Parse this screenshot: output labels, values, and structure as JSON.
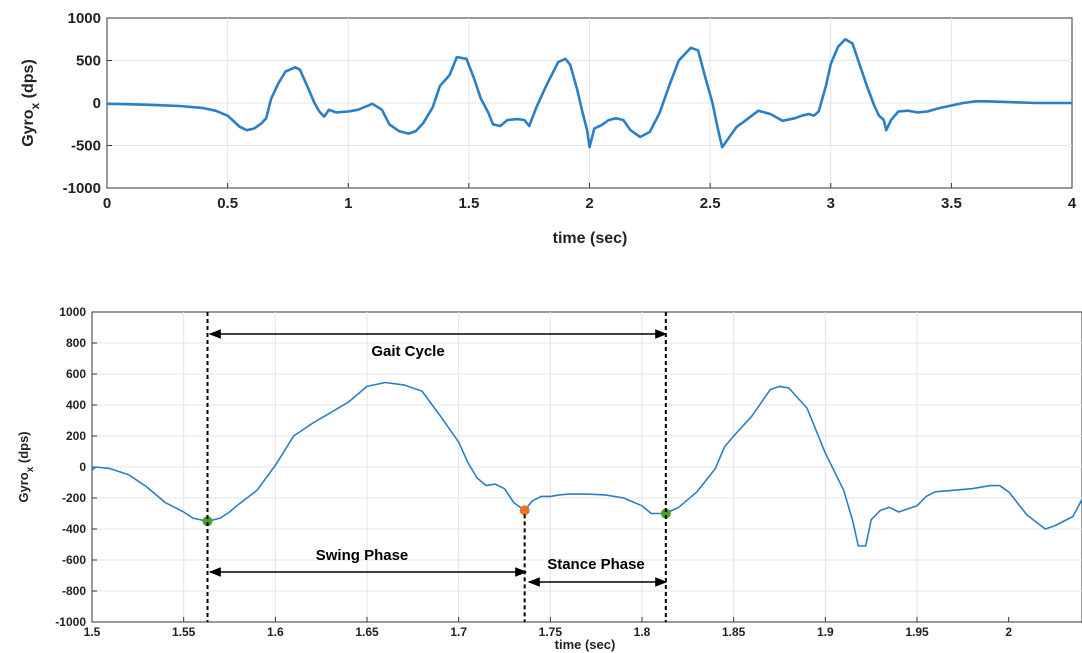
{
  "chart_data": [
    {
      "type": "line",
      "xlabel": "time (sec)",
      "ylabel": "Gyro",
      "ylabel_sub": "x",
      "ylabel_unit": " (dps)",
      "xlim": [
        0,
        4
      ],
      "ylim": [
        -1000,
        1000
      ],
      "xticks": [
        0,
        0.5,
        1,
        1.5,
        2,
        2.5,
        3,
        3.5,
        4
      ],
      "xtick_labels": [
        "0",
        "0.5",
        "1",
        "1.5",
        "2",
        "2.5",
        "3",
        "3.5",
        "4"
      ],
      "yticks": [
        -1000,
        -500,
        0,
        500,
        1000
      ],
      "ytick_labels": [
        "-1000",
        "-500",
        "0",
        "500",
        "1000"
      ],
      "grid": true,
      "color": "#2a7fc7",
      "series": [
        {
          "points": [
            [
              0,
              -10
            ],
            [
              0.1,
              -15
            ],
            [
              0.2,
              -25
            ],
            [
              0.3,
              -35
            ],
            [
              0.4,
              -60
            ],
            [
              0.45,
              -90
            ],
            [
              0.5,
              -150
            ],
            [
              0.52,
              -200
            ],
            [
              0.55,
              -280
            ],
            [
              0.58,
              -320
            ],
            [
              0.61,
              -300
            ],
            [
              0.64,
              -240
            ],
            [
              0.66,
              -180
            ],
            [
              0.68,
              50
            ],
            [
              0.71,
              230
            ],
            [
              0.74,
              370
            ],
            [
              0.78,
              420
            ],
            [
              0.8,
              390
            ],
            [
              0.83,
              200
            ],
            [
              0.86,
              0
            ],
            [
              0.88,
              -100
            ],
            [
              0.9,
              -160
            ],
            [
              0.92,
              -80
            ],
            [
              0.95,
              -110
            ],
            [
              1,
              -100
            ],
            [
              1.04,
              -80
            ],
            [
              1.1,
              -10
            ],
            [
              1.14,
              -80
            ],
            [
              1.17,
              -250
            ],
            [
              1.21,
              -330
            ],
            [
              1.25,
              -360
            ],
            [
              1.28,
              -330
            ],
            [
              1.31,
              -240
            ],
            [
              1.35,
              -50
            ],
            [
              1.38,
              200
            ],
            [
              1.42,
              330
            ],
            [
              1.45,
              540
            ],
            [
              1.49,
              520
            ],
            [
              1.52,
              300
            ],
            [
              1.55,
              50
            ],
            [
              1.58,
              -110
            ],
            [
              1.6,
              -250
            ],
            [
              1.63,
              -270
            ],
            [
              1.66,
              -200
            ],
            [
              1.7,
              -190
            ],
            [
              1.73,
              -200
            ],
            [
              1.75,
              -270
            ],
            [
              1.78,
              -50
            ],
            [
              1.82,
              200
            ],
            [
              1.87,
              480
            ],
            [
              1.9,
              520
            ],
            [
              1.92,
              450
            ],
            [
              1.95,
              150
            ],
            [
              1.97,
              -100
            ],
            [
              1.99,
              -320
            ],
            [
              2.0,
              -520
            ],
            [
              2.02,
              -300
            ],
            [
              2.05,
              -260
            ],
            [
              2.08,
              -200
            ],
            [
              2.11,
              -180
            ],
            [
              2.14,
              -200
            ],
            [
              2.17,
              -320
            ],
            [
              2.21,
              -400
            ],
            [
              2.25,
              -340
            ],
            [
              2.29,
              -120
            ],
            [
              2.33,
              200
            ],
            [
              2.37,
              500
            ],
            [
              2.42,
              650
            ],
            [
              2.45,
              620
            ],
            [
              2.48,
              300
            ],
            [
              2.51,
              0
            ],
            [
              2.53,
              -280
            ],
            [
              2.55,
              -520
            ],
            [
              2.58,
              -400
            ],
            [
              2.61,
              -280
            ],
            [
              2.64,
              -220
            ],
            [
              2.7,
              -90
            ],
            [
              2.75,
              -130
            ],
            [
              2.8,
              -210
            ],
            [
              2.85,
              -180
            ],
            [
              2.88,
              -150
            ],
            [
              2.91,
              -130
            ],
            [
              2.93,
              -150
            ],
            [
              2.95,
              -100
            ],
            [
              2.98,
              200
            ],
            [
              3.0,
              460
            ],
            [
              3.03,
              660
            ],
            [
              3.06,
              750
            ],
            [
              3.09,
              700
            ],
            [
              3.12,
              450
            ],
            [
              3.15,
              200
            ],
            [
              3.18,
              -30
            ],
            [
              3.2,
              -150
            ],
            [
              3.22,
              -200
            ],
            [
              3.23,
              -320
            ],
            [
              3.25,
              -200
            ],
            [
              3.28,
              -100
            ],
            [
              3.32,
              -90
            ],
            [
              3.36,
              -110
            ],
            [
              3.4,
              -100
            ],
            [
              3.45,
              -60
            ],
            [
              3.5,
              -30
            ],
            [
              3.55,
              0
            ],
            [
              3.6,
              20
            ],
            [
              3.65,
              20
            ],
            [
              3.75,
              10
            ],
            [
              3.85,
              0
            ],
            [
              4.0,
              0
            ]
          ]
        }
      ]
    },
    {
      "type": "line",
      "xlabel": "time (sec)",
      "ylabel": "Gyro",
      "ylabel_sub": "x",
      "ylabel_unit": " (dps)",
      "xlim": [
        1.5,
        2.04
      ],
      "ylim": [
        -1000,
        1000
      ],
      "xticks": [
        1.5,
        1.55,
        1.6,
        1.65,
        1.7,
        1.75,
        1.8,
        1.85,
        1.9,
        1.95,
        2
      ],
      "xtick_labels": [
        "1.5",
        "1.55",
        "1.6",
        "1.65",
        "1.7",
        "1.75",
        "1.8",
        "1.85",
        "1.9",
        "1.95",
        "2"
      ],
      "yticks": [
        -1000,
        -800,
        -600,
        -400,
        -200,
        0,
        200,
        400,
        600,
        800,
        1000
      ],
      "ytick_labels": [
        "-1000",
        "-800",
        "-600",
        "-400",
        "-200",
        "0",
        "200",
        "400",
        "600",
        "800",
        "1000"
      ],
      "grid": true,
      "color": "#2a7fc7",
      "series": [
        {
          "points": [
            [
              1.5,
              -20
            ],
            [
              1.502,
              0
            ],
            [
              1.51,
              -10
            ],
            [
              1.52,
              -50
            ],
            [
              1.53,
              -130
            ],
            [
              1.54,
              -230
            ],
            [
              1.55,
              -290
            ],
            [
              1.555,
              -330
            ],
            [
              1.563,
              -350
            ],
            [
              1.57,
              -330
            ],
            [
              1.575,
              -290
            ],
            [
              1.58,
              -240
            ],
            [
              1.59,
              -150
            ],
            [
              1.6,
              10
            ],
            [
              1.61,
              200
            ],
            [
              1.62,
              280
            ],
            [
              1.63,
              350
            ],
            [
              1.64,
              420
            ],
            [
              1.65,
              520
            ],
            [
              1.66,
              545
            ],
            [
              1.67,
              530
            ],
            [
              1.68,
              490
            ],
            [
              1.69,
              330
            ],
            [
              1.7,
              160
            ],
            [
              1.705,
              30
            ],
            [
              1.71,
              -70
            ],
            [
              1.715,
              -120
            ],
            [
              1.72,
              -110
            ],
            [
              1.725,
              -140
            ],
            [
              1.73,
              -230
            ],
            [
              1.736,
              -280
            ],
            [
              1.74,
              -220
            ],
            [
              1.745,
              -190
            ],
            [
              1.75,
              -190
            ],
            [
              1.755,
              -180
            ],
            [
              1.76,
              -175
            ],
            [
              1.77,
              -175
            ],
            [
              1.78,
              -180
            ],
            [
              1.79,
              -200
            ],
            [
              1.8,
              -250
            ],
            [
              1.805,
              -300
            ],
            [
              1.813,
              -300
            ],
            [
              1.82,
              -260
            ],
            [
              1.83,
              -160
            ],
            [
              1.84,
              -10
            ],
            [
              1.845,
              130
            ],
            [
              1.85,
              200
            ],
            [
              1.86,
              330
            ],
            [
              1.87,
              500
            ],
            [
              1.875,
              520
            ],
            [
              1.88,
              510
            ],
            [
              1.89,
              380
            ],
            [
              1.9,
              90
            ],
            [
              1.91,
              -150
            ],
            [
              1.915,
              -350
            ],
            [
              1.918,
              -510
            ],
            [
              1.922,
              -510
            ],
            [
              1.925,
              -340
            ],
            [
              1.93,
              -280
            ],
            [
              1.935,
              -260
            ],
            [
              1.94,
              -290
            ],
            [
              1.95,
              -250
            ],
            [
              1.955,
              -190
            ],
            [
              1.96,
              -160
            ],
            [
              1.98,
              -140
            ],
            [
              1.99,
              -120
            ],
            [
              1.995,
              -120
            ],
            [
              2.0,
              -160
            ],
            [
              2.01,
              -310
            ],
            [
              2.02,
              -400
            ],
            [
              2.025,
              -380
            ],
            [
              2.035,
              -320
            ],
            [
              2.04,
              -210
            ]
          ]
        }
      ],
      "events": [
        {
          "t": 1.563,
          "y": -350,
          "color": "#4aa02c"
        },
        {
          "t": 1.736,
          "y": -280,
          "color": "#e8742a"
        },
        {
          "t": 1.813,
          "y": -300,
          "color": "#4aa02c"
        }
      ],
      "annotations": {
        "gait_cycle": "Gait Cycle",
        "swing_phase": "Swing Phase",
        "stance_phase": "Stance Phase"
      }
    }
  ]
}
